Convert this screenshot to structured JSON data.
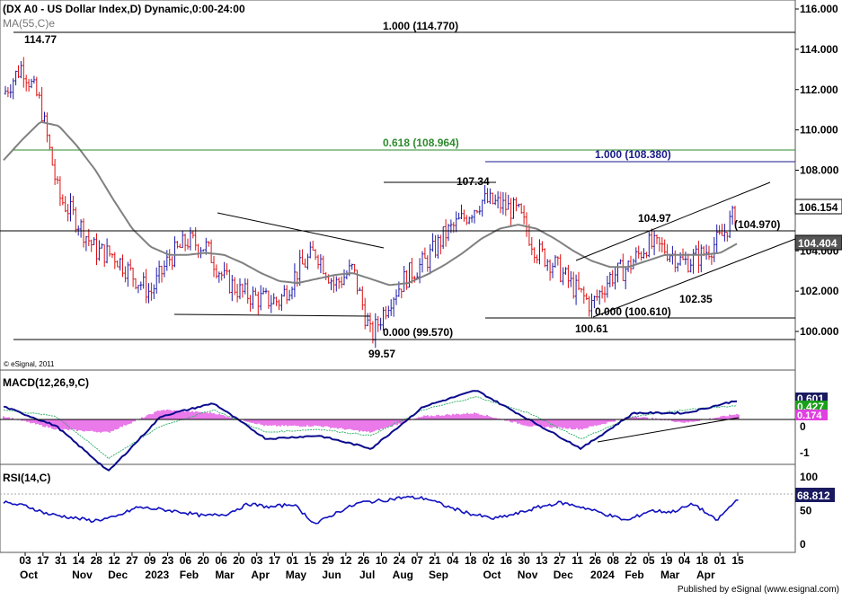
{
  "header": {
    "symbol_line": "(DX A0 - US Dollar Index,D) Dynamic,0:00-24:00",
    "ma_label": "MA(55,C)e",
    "watermark": "© eSignal, 2011",
    "footer": "Published by eSignal (www.esignal.com)"
  },
  "price_panel": {
    "y_ticks": [
      "116.000",
      "114.000",
      "112.000",
      "110.000",
      "108.000",
      "106.000",
      "104.000",
      "102.000",
      "100.000"
    ],
    "last_price": "106.154",
    "ma_value": "104.404",
    "annotations": [
      "114.77",
      "1.000 (114.770)",
      "0.618 (108.964)",
      "1.000 (108.380)",
      "107.34",
      "104.97",
      "(104.970)",
      "102.35",
      "0.000 (100.610)",
      "100.61",
      "0.000 (99.570)",
      "99.57"
    ]
  },
  "macd_panel": {
    "label": "MACD(12,26,9,C)",
    "values": [
      "0.601",
      "0.427",
      "0.174"
    ],
    "y_ticks": [
      "0",
      "-1"
    ]
  },
  "rsi_panel": {
    "label": "RSI(14,C)",
    "value": "68.812",
    "y_ticks": [
      "100",
      "50",
      "0"
    ]
  },
  "x_axis": {
    "dates": [
      "03",
      "17",
      "31",
      "14",
      "28",
      "12",
      "27",
      "09",
      "23",
      "06",
      "20",
      "06",
      "20",
      "03",
      "17",
      "01",
      "15",
      "29",
      "12",
      "26",
      "10",
      "24",
      "07",
      "21",
      "04",
      "18",
      "02",
      "16",
      "30",
      "13",
      "27",
      "11",
      "26",
      "08",
      "22",
      "05",
      "19",
      "04",
      "18",
      "01",
      "15"
    ],
    "months": [
      "Oct",
      "Nov",
      "Dec",
      "2023",
      "Feb",
      "Mar",
      "Apr",
      "May",
      "Jun",
      "Jul",
      "Aug",
      "Sep",
      "Oct",
      "Nov",
      "Dec",
      "2024",
      "Feb",
      "Mar",
      "Apr"
    ]
  },
  "colors": {
    "up_bar": "#1a1aa8",
    "down_bar": "#e01010",
    "ma_line": "#808080",
    "fib_green": "#2e8b2e",
    "fib_blue": "#1a1a8c",
    "macd_line": "#0a0a8c",
    "signal_line": "#3cb371",
    "histogram": "#e040e0",
    "rsi_line": "#1010c0",
    "value_box_green": "#18a018",
    "value_box_purple": "#e040e0",
    "value_box_dark": "#1a1a60"
  },
  "chart_data": [
    {
      "type": "line",
      "panel": "price",
      "title": "(DX A0 - US Dollar Index,D) Dynamic,0:00-24:00",
      "x": [
        "2022-10-03",
        "2022-10-17",
        "2022-10-31",
        "2022-11-14",
        "2022-11-28",
        "2022-12-12",
        "2022-12-27",
        "2023-01-09",
        "2023-01-23",
        "2023-02-06",
        "2023-02-20",
        "2023-03-06",
        "2023-03-20",
        "2023-04-03",
        "2023-04-17",
        "2023-05-01",
        "2023-05-15",
        "2023-05-29",
        "2023-06-12",
        "2023-06-26",
        "2023-07-10",
        "2023-07-24",
        "2023-08-07",
        "2023-08-21",
        "2023-09-04",
        "2023-09-18",
        "2023-10-02",
        "2023-10-16",
        "2023-10-30",
        "2023-11-13",
        "2023-11-27",
        "2023-12-11",
        "2023-12-26",
        "2024-01-08",
        "2024-01-22",
        "2024-02-05",
        "2024-02-19",
        "2024-03-04",
        "2024-03-18",
        "2024-04-01",
        "2024-04-15"
      ],
      "series": [
        {
          "name": "US Dollar Index",
          "values": [
            111.8,
            113.2,
            111.3,
            106.7,
            105.5,
            104.0,
            103.8,
            102.8,
            101.9,
            103.6,
            104.5,
            104.2,
            102.6,
            101.9,
            101.6,
            101.5,
            103.0,
            104.0,
            102.3,
            103.1,
            99.7,
            101.6,
            102.8,
            103.5,
            104.8,
            105.6,
            106.5,
            106.3,
            105.9,
            104.0,
            103.3,
            102.2,
            101.3,
            102.7,
            103.2,
            104.3,
            104.1,
            103.4,
            103.8,
            104.6,
            106.15
          ]
        },
        {
          "name": "MA(55,C)e",
          "values": [
            108.5,
            109.5,
            110.4,
            110.2,
            109.2,
            108.0,
            106.5,
            105.1,
            104.2,
            103.8,
            103.8,
            103.9,
            103.8,
            103.4,
            102.9,
            102.5,
            102.4,
            102.6,
            102.8,
            102.9,
            102.6,
            102.3,
            102.4,
            102.8,
            103.3,
            103.9,
            104.6,
            105.1,
            105.3,
            105.1,
            104.6,
            104.0,
            103.5,
            103.2,
            103.2,
            103.5,
            103.8,
            103.8,
            103.8,
            103.9,
            104.4
          ]
        }
      ],
      "ylim": [
        98.8,
        116.4
      ],
      "levels": [
        {
          "label": "1.000 (114.770)",
          "value": 114.77
        },
        {
          "label": "0.618 (108.964)",
          "value": 108.964
        },
        {
          "label": "1.000 (108.380)",
          "value": 108.38
        },
        {
          "label": "(104.970)",
          "value": 104.97
        },
        {
          "label": "0.000 (100.610)",
          "value": 100.61
        },
        {
          "label": "0.000 (99.570)",
          "value": 99.57
        }
      ],
      "annotations": [
        {
          "text": "114.77",
          "value": 114.77
        },
        {
          "text": "107.34",
          "value": 107.34
        },
        {
          "text": "104.97",
          "value": 104.97
        },
        {
          "text": "102.35",
          "value": 102.35
        },
        {
          "text": "100.61",
          "value": 100.61
        },
        {
          "text": "99.57",
          "value": 99.57
        }
      ],
      "last_values": {
        "price": 106.154,
        "ma": 104.404
      }
    },
    {
      "type": "line",
      "panel": "macd",
      "title": "MACD(12,26,9,C)",
      "x": [
        "2022-10-03",
        "2022-11-14",
        "2022-12-27",
        "2023-02-06",
        "2023-03-20",
        "2023-05-01",
        "2023-06-12",
        "2023-07-24",
        "2023-09-04",
        "2023-10-16",
        "2023-11-27",
        "2024-01-08",
        "2024-02-19",
        "2024-04-01",
        "2024-04-15"
      ],
      "series": [
        {
          "name": "MACD",
          "values": [
            0.4,
            -0.2,
            -1.6,
            0.1,
            0.5,
            -0.6,
            -0.5,
            -0.9,
            0.4,
            0.9,
            0.0,
            -0.9,
            0.2,
            0.2,
            0.601
          ]
        },
        {
          "name": "Signal",
          "values": [
            0.3,
            0.1,
            -1.2,
            -0.2,
            0.3,
            -0.4,
            -0.3,
            -0.5,
            0.3,
            0.7,
            0.2,
            -0.6,
            0.1,
            0.3,
            0.427
          ]
        },
        {
          "name": "Histogram",
          "values": [
            0.1,
            -0.3,
            -0.4,
            0.3,
            0.2,
            -0.2,
            -0.2,
            -0.4,
            0.1,
            0.2,
            -0.2,
            -0.3,
            0.1,
            -0.1,
            0.174
          ]
        }
      ],
      "ylim": [
        -1.5,
        1.2
      ]
    },
    {
      "type": "line",
      "panel": "rsi",
      "title": "RSI(14,C)",
      "series": [
        {
          "name": "RSI",
          "values": [
            62,
            57,
            45,
            40,
            35,
            40,
            55,
            52,
            48,
            42,
            45,
            60,
            55,
            60,
            30,
            48,
            62,
            65,
            70,
            68,
            55,
            45,
            38,
            45,
            55,
            62,
            55,
            45,
            35,
            50,
            48,
            60,
            35,
            68.812
          ]
        }
      ],
      "ylim": [
        0,
        100
      ]
    }
  ]
}
